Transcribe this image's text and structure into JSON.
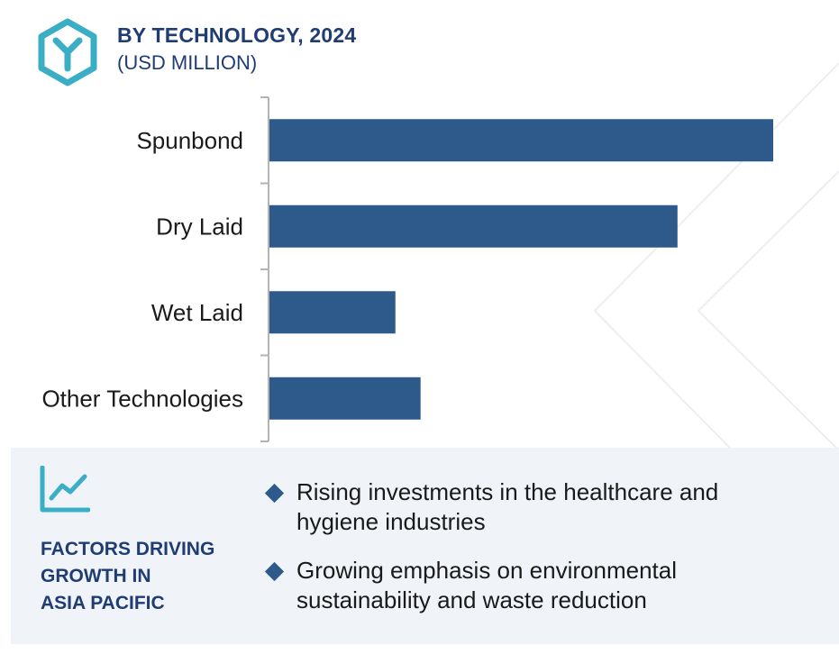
{
  "colors": {
    "bar": "#2d5a8b",
    "title": "#1f3c73",
    "accent": "#3aaec4",
    "axis": "#b3b3b3",
    "footer_bg": "#f0f3f8",
    "diamond": "#2d5a8b"
  },
  "header": {
    "logo_icon": "hexagon-y-logo-icon",
    "title": "BY TECHNOLOGY, 2024",
    "subtitle": "(USD MILLION)"
  },
  "chart_data": {
    "type": "bar",
    "orientation": "horizontal",
    "categories": [
      "Spunbond",
      "Dry Laid",
      "Wet Laid",
      "Other Technologies"
    ],
    "values": [
      100,
      81,
      25,
      30
    ],
    "xlim": [
      0,
      100
    ],
    "grid": false,
    "legend": "none",
    "value_axis_labels_shown": false
  },
  "footer": {
    "icon": "trend-line-icon",
    "title_lines": [
      "FACTORS DRIVING",
      "GROWTH IN",
      "ASIA PACIFIC"
    ],
    "drivers": [
      "Rising investments in the healthcare and hygiene industries",
      "Growing emphasis on environmental sustainability and waste reduction"
    ]
  }
}
